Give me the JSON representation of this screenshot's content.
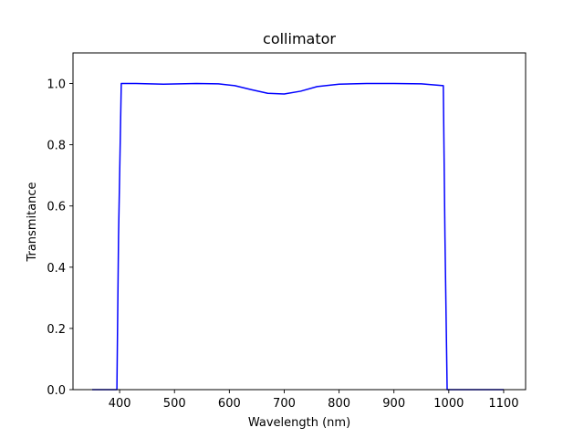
{
  "chart_data": {
    "type": "line",
    "title": "collimator",
    "xlabel": "Wavelength (nm)",
    "ylabel": "Transmitance",
    "xlim": [
      315,
      1140
    ],
    "ylim": [
      0,
      1.1
    ],
    "xticks": [
      400,
      500,
      600,
      700,
      800,
      900,
      1000,
      1100
    ],
    "yticks": [
      0.0,
      0.2,
      0.4,
      0.6,
      0.8,
      1.0
    ],
    "ytick_labels": [
      "0.0",
      "0.2",
      "0.4",
      "0.6",
      "0.8",
      "1.0"
    ],
    "grid": false,
    "series": [
      {
        "color": "#0000ff",
        "x": [
          350,
          395,
          398,
          403,
          430,
          480,
          540,
          580,
          610,
          640,
          670,
          700,
          730,
          760,
          800,
          850,
          900,
          950,
          990,
          993,
          997,
          1000,
          1100
        ],
        "y": [
          0.0,
          0.0,
          0.5,
          1.0,
          1.0,
          0.998,
          1.0,
          0.999,
          0.993,
          0.98,
          0.968,
          0.966,
          0.975,
          0.99,
          0.998,
          1.0,
          1.0,
          0.999,
          0.993,
          0.5,
          0.0,
          0.0,
          0.0
        ]
      }
    ]
  }
}
